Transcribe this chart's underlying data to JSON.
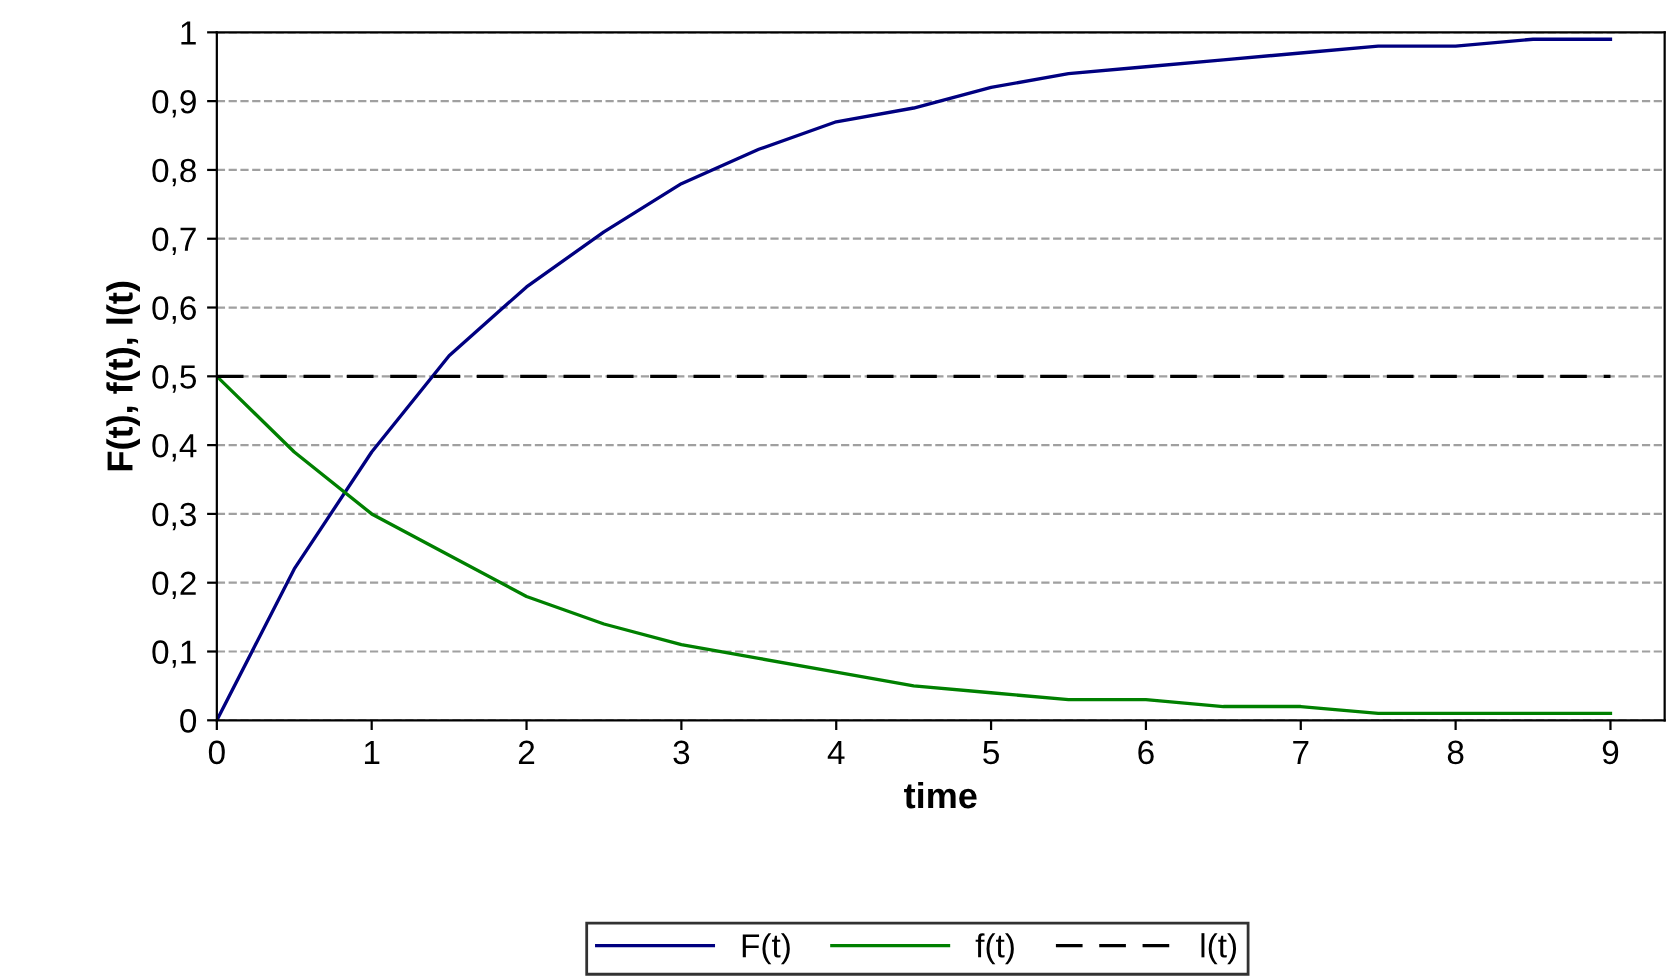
{
  "chart_data": {
    "type": "line",
    "xlabel": "time",
    "ylabel": "F(t), f(t), l(t)",
    "xlim": [
      0,
      9.35
    ],
    "xticks": [
      0,
      1,
      2,
      3,
      4,
      5,
      6,
      7,
      8,
      9
    ],
    "ylim": [
      0,
      1
    ],
    "yticks": [
      0,
      {
        "value": 0.1,
        "label": "0,1"
      },
      {
        "value": 0.2,
        "label": "0,2"
      },
      {
        "value": 0.3,
        "label": "0,3"
      },
      {
        "value": 0.4,
        "label": "0,4"
      },
      {
        "value": 0.5,
        "label": "0,5"
      },
      {
        "value": 0.6,
        "label": "0,6"
      },
      {
        "value": 0.7,
        "label": "0,7"
      },
      {
        "value": 0.8,
        "label": "0,8"
      },
      {
        "value": 0.9,
        "label": "0,9"
      },
      1
    ],
    "grid": "y",
    "legend": "bottom",
    "marker": "none",
    "x": [
      0,
      0.5,
      1,
      1.5,
      2,
      2.5,
      3,
      3.5,
      4,
      4.5,
      5,
      5.5,
      6,
      6.5,
      7,
      7.5,
      8,
      8.5,
      9
    ],
    "series": [
      {
        "name": "F(t)",
        "color": "#000080",
        "values": [
          0,
          0.22,
          0.39,
          0.53,
          0.63,
          0.71,
          0.78,
          0.83,
          0.87,
          0.89,
          0.92,
          0.94,
          0.95,
          0.96,
          0.97,
          0.98,
          0.98,
          0.99,
          0.99
        ]
      },
      {
        "name": "f(t)",
        "color": "#008000",
        "values": [
          0.5,
          0.39,
          0.3,
          0.24,
          0.18,
          0.14,
          0.11,
          0.09,
          0.07,
          0.05,
          0.04,
          0.03,
          0.03,
          0.02,
          0.02,
          0.01,
          0.01,
          0.01,
          0.01
        ]
      },
      {
        "name": "l(t)",
        "color": "#000000",
        "line_style": "dashed",
        "values": [
          0.5,
          0.5,
          0.5,
          0.5,
          0.5,
          0.5,
          0.5,
          0.5,
          0.5,
          0.5,
          0.5,
          0.5,
          0.5,
          0.5,
          0.5,
          0.5,
          0.5,
          0.5,
          0.5
        ]
      }
    ]
  }
}
